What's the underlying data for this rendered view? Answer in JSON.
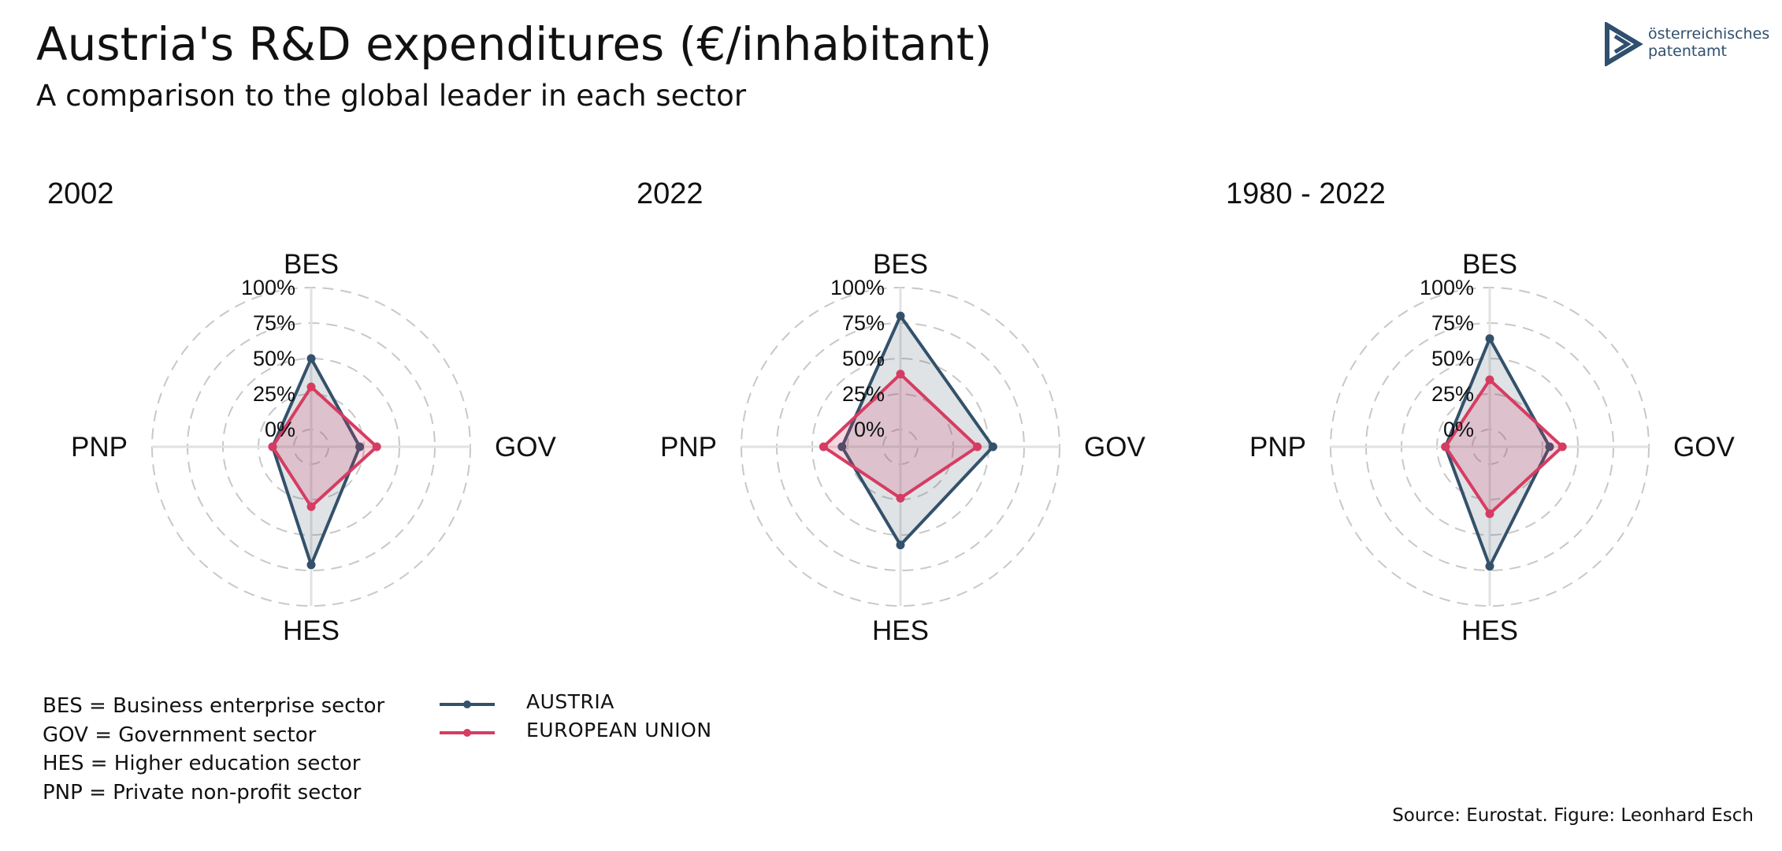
{
  "title": "Austria's R&D expenditures (€/inhabitant)",
  "subtitle": "A comparison to the global leader in each sector",
  "logo": {
    "line1": "österreichisches",
    "line2": "patentamt"
  },
  "definitions": [
    "BES = Business enterprise sector",
    "GOV = Government sector",
    "HES = Higher education sector",
    "PNP = Private non-profit sector"
  ],
  "legend": [
    {
      "label": "AUSTRIA",
      "color": "#34516b"
    },
    {
      "label": "EUROPEAN UNION",
      "color": "#d63c62"
    }
  ],
  "source": "Source: Eurostat. Figure: Leonhard Esch",
  "colors": {
    "austria": "#34516b",
    "eu": "#d63c62",
    "grid": "#c8c8c8",
    "axis": "#e2e2e2"
  },
  "chart_data": [
    {
      "type": "radar",
      "title": "2002",
      "axes": [
        "BES",
        "GOV",
        "HES",
        "PNP"
      ],
      "ticks": [
        "0%",
        "25%",
        "50%",
        "75%",
        "100%"
      ],
      "range": [
        0,
        100
      ],
      "series": [
        {
          "name": "AUSTRIA",
          "values": [
            50,
            22,
            71,
            15
          ]
        },
        {
          "name": "EUROPEAN UNION",
          "values": [
            30,
            34,
            30,
            15
          ]
        }
      ]
    },
    {
      "type": "radar",
      "title": "2022",
      "axes": [
        "BES",
        "GOV",
        "HES",
        "PNP"
      ],
      "ticks": [
        "0%",
        "25%",
        "50%",
        "75%",
        "100%"
      ],
      "range": [
        0,
        100
      ],
      "series": [
        {
          "name": "AUSTRIA",
          "values": [
            80,
            53,
            57,
            29
          ]
        },
        {
          "name": "EUROPEAN UNION",
          "values": [
            39,
            42,
            24,
            42
          ]
        }
      ]
    },
    {
      "type": "radar",
      "title": "1980 - 2022",
      "axes": [
        "BES",
        "GOV",
        "HES",
        "PNP"
      ],
      "ticks": [
        "0%",
        "25%",
        "50%",
        "75%",
        "100%"
      ],
      "range": [
        0,
        100
      ],
      "series": [
        {
          "name": "AUSTRIA",
          "values": [
            64,
            30,
            72,
            19
          ]
        },
        {
          "name": "EUROPEAN UNION",
          "values": [
            35,
            39,
            35,
            19
          ]
        }
      ]
    }
  ]
}
